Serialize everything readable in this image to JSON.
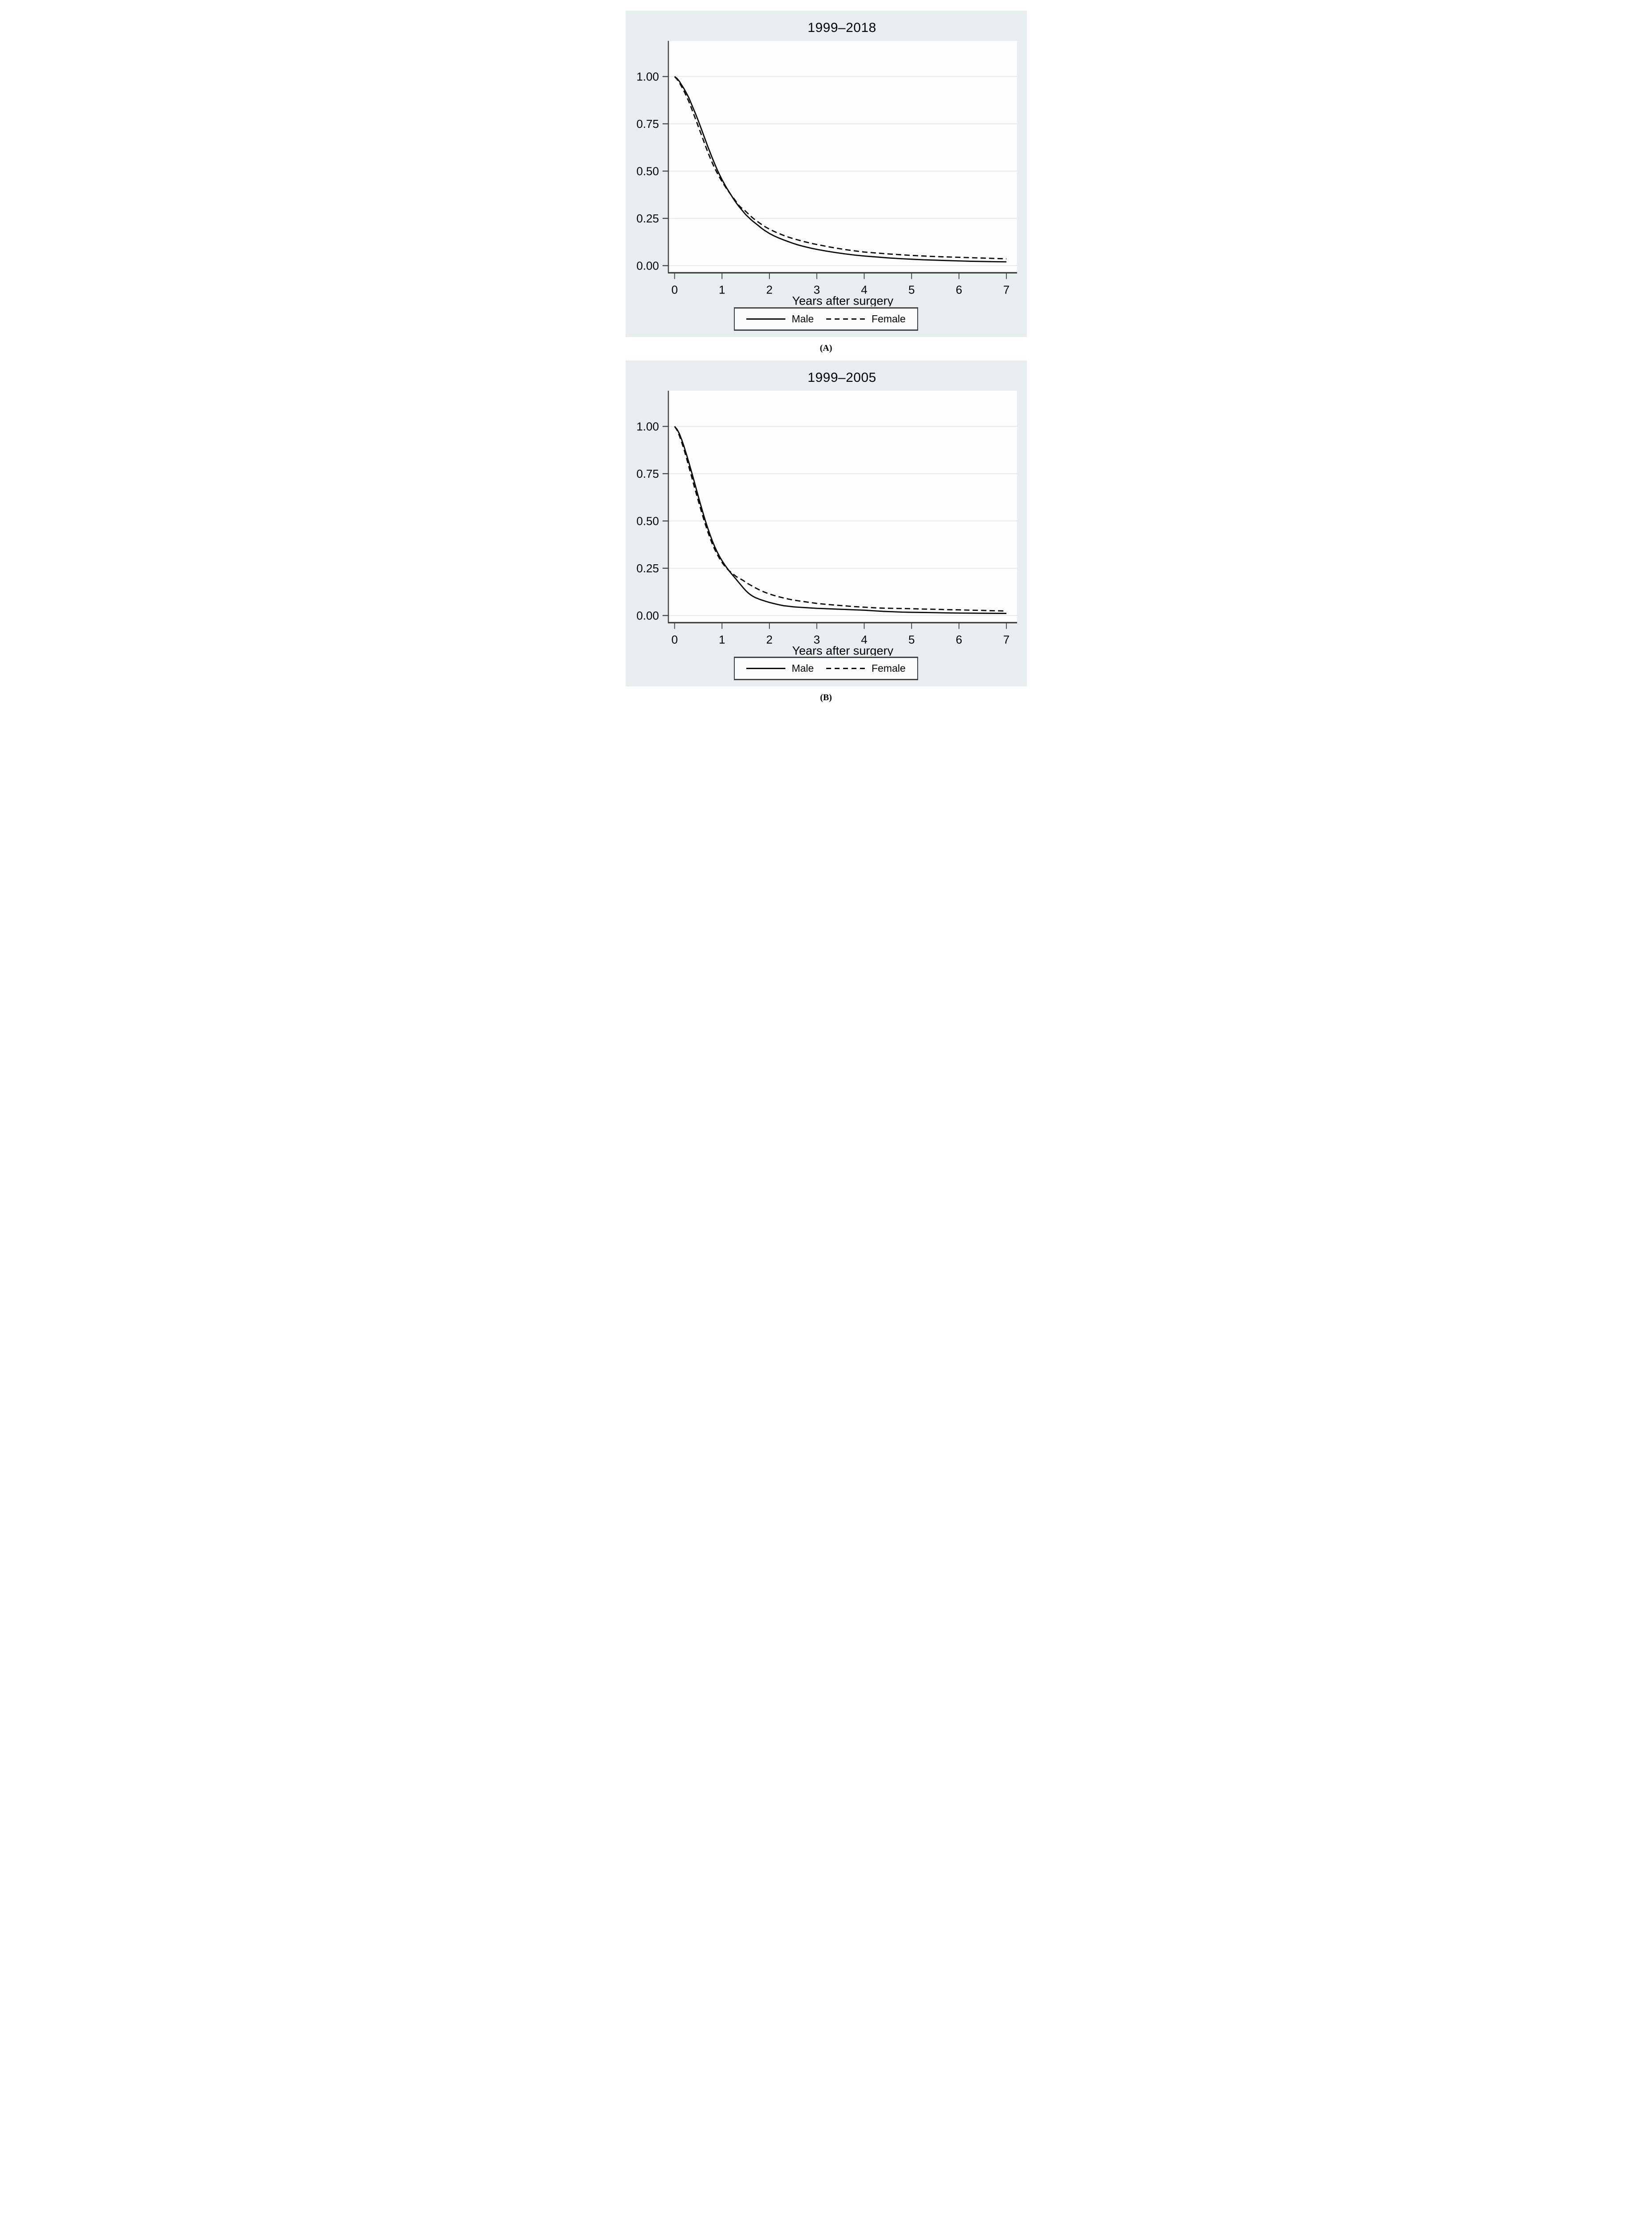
{
  "page": {
    "caption_a": "(A)",
    "caption_b": "(B)"
  },
  "colors": {
    "page_bg": "#ffffff",
    "region_bg": "#e8eef0",
    "plot_bg": "#fdfdfe",
    "gridline": "#dde8ec",
    "axis": "#3f3f3f",
    "curve": "#0a0a0a",
    "legend_bg": "#fbfcfd",
    "legend_border": "#434343",
    "text": "#000000"
  },
  "chart_data": [
    {
      "type": "line",
      "panel": "A",
      "title": "1999–2018",
      "xlabel": "Years after surgery",
      "ylabel": "",
      "xlim": [
        0,
        7
      ],
      "ylim": [
        0,
        1
      ],
      "x_ticks": [
        "0",
        "1",
        "2",
        "3",
        "4",
        "5",
        "6",
        "7"
      ],
      "y_ticks": [
        "1.00",
        "0.75",
        "0.50",
        "0.25",
        "0.00"
      ],
      "grid": true,
      "legend_position": "bottom-box",
      "series": [
        {
          "name": "Male",
          "style": "solid",
          "color": "#0a0a0a",
          "points": [
            [
              0,
              1.0
            ],
            [
              0.05,
              0.99
            ],
            [
              0.1,
              0.975
            ],
            [
              0.15,
              0.955
            ],
            [
              0.2,
              0.935
            ],
            [
              0.25,
              0.912
            ],
            [
              0.3,
              0.888
            ],
            [
              0.35,
              0.858
            ],
            [
              0.4,
              0.828
            ],
            [
              0.45,
              0.798
            ],
            [
              0.5,
              0.766
            ],
            [
              0.55,
              0.732
            ],
            [
              0.6,
              0.698
            ],
            [
              0.65,
              0.664
            ],
            [
              0.7,
              0.63
            ],
            [
              0.75,
              0.598
            ],
            [
              0.8,
              0.566
            ],
            [
              0.85,
              0.536
            ],
            [
              0.9,
              0.506
            ],
            [
              0.95,
              0.48
            ],
            [
              1.0,
              0.455
            ],
            [
              1.05,
              0.432
            ],
            [
              1.1,
              0.41
            ],
            [
              1.15,
              0.39
            ],
            [
              1.2,
              0.37
            ],
            [
              1.25,
              0.35
            ],
            [
              1.3,
              0.332
            ],
            [
              1.35,
              0.315
            ],
            [
              1.4,
              0.3
            ],
            [
              1.45,
              0.285
            ],
            [
              1.5,
              0.27
            ],
            [
              1.55,
              0.258
            ],
            [
              1.6,
              0.246
            ],
            [
              1.65,
              0.235
            ],
            [
              1.7,
              0.225
            ],
            [
              1.75,
              0.215
            ],
            [
              1.8,
              0.205
            ],
            [
              1.85,
              0.195
            ],
            [
              1.9,
              0.186
            ],
            [
              1.95,
              0.178
            ],
            [
              2.0,
              0.17
            ],
            [
              2.1,
              0.157
            ],
            [
              2.2,
              0.146
            ],
            [
              2.3,
              0.136
            ],
            [
              2.4,
              0.127
            ],
            [
              2.5,
              0.118
            ],
            [
              2.6,
              0.11
            ],
            [
              2.7,
              0.103
            ],
            [
              2.8,
              0.097
            ],
            [
              2.9,
              0.091
            ],
            [
              3.0,
              0.086
            ],
            [
              3.2,
              0.077
            ],
            [
              3.4,
              0.069
            ],
            [
              3.6,
              0.062
            ],
            [
              3.8,
              0.056
            ],
            [
              4.0,
              0.051
            ],
            [
              4.25,
              0.046
            ],
            [
              4.5,
              0.041
            ],
            [
              4.75,
              0.037
            ],
            [
              5.0,
              0.034
            ],
            [
              5.25,
              0.031
            ],
            [
              5.5,
              0.029
            ],
            [
              5.75,
              0.027
            ],
            [
              6.0,
              0.025
            ],
            [
              6.25,
              0.023
            ],
            [
              6.5,
              0.022
            ],
            [
              6.75,
              0.021
            ],
            [
              7.0,
              0.02
            ]
          ]
        },
        {
          "name": "Female",
          "style": "dashed",
          "color": "#0a0a0a",
          "points": [
            [
              0,
              1.0
            ],
            [
              0.05,
              0.986
            ],
            [
              0.1,
              0.968
            ],
            [
              0.15,
              0.946
            ],
            [
              0.2,
              0.922
            ],
            [
              0.25,
              0.896
            ],
            [
              0.3,
              0.868
            ],
            [
              0.35,
              0.836
            ],
            [
              0.4,
              0.803
            ],
            [
              0.45,
              0.77
            ],
            [
              0.5,
              0.736
            ],
            [
              0.55,
              0.702
            ],
            [
              0.6,
              0.668
            ],
            [
              0.65,
              0.634
            ],
            [
              0.7,
              0.601
            ],
            [
              0.75,
              0.57
            ],
            [
              0.8,
              0.541
            ],
            [
              0.85,
              0.514
            ],
            [
              0.9,
              0.489
            ],
            [
              0.95,
              0.466
            ],
            [
              1.0,
              0.445
            ],
            [
              1.05,
              0.425
            ],
            [
              1.1,
              0.406
            ],
            [
              1.15,
              0.388
            ],
            [
              1.2,
              0.371
            ],
            [
              1.25,
              0.355
            ],
            [
              1.3,
              0.338
            ],
            [
              1.35,
              0.32
            ],
            [
              1.4,
              0.307
            ],
            [
              1.45,
              0.299
            ],
            [
              1.5,
              0.287
            ],
            [
              1.55,
              0.275
            ],
            [
              1.6,
              0.263
            ],
            [
              1.65,
              0.252
            ],
            [
              1.7,
              0.242
            ],
            [
              1.75,
              0.233
            ],
            [
              1.8,
              0.224
            ],
            [
              1.85,
              0.215
            ],
            [
              1.9,
              0.207
            ],
            [
              1.95,
              0.2
            ],
            [
              2.0,
              0.193
            ],
            [
              2.1,
              0.181
            ],
            [
              2.2,
              0.17
            ],
            [
              2.3,
              0.16
            ],
            [
              2.4,
              0.151
            ],
            [
              2.5,
              0.143
            ],
            [
              2.6,
              0.136
            ],
            [
              2.7,
              0.129
            ],
            [
              2.8,
              0.123
            ],
            [
              2.9,
              0.117
            ],
            [
              3.0,
              0.112
            ],
            [
              3.2,
              0.102
            ],
            [
              3.4,
              0.093
            ],
            [
              3.6,
              0.085
            ],
            [
              3.8,
              0.078
            ],
            [
              4.0,
              0.072
            ],
            [
              4.25,
              0.067
            ],
            [
              4.5,
              0.062
            ],
            [
              4.75,
              0.058
            ],
            [
              5.0,
              0.054
            ],
            [
              5.25,
              0.051
            ],
            [
              5.5,
              0.048
            ],
            [
              5.75,
              0.046
            ],
            [
              6.0,
              0.044
            ],
            [
              6.25,
              0.042
            ],
            [
              6.5,
              0.04
            ],
            [
              6.75,
              0.038
            ],
            [
              7.0,
              0.036
            ]
          ]
        }
      ]
    },
    {
      "type": "line",
      "panel": "B",
      "title": "1999–2005",
      "xlabel": "Years after surgery",
      "ylabel": "",
      "xlim": [
        0,
        7
      ],
      "ylim": [
        0,
        1
      ],
      "x_ticks": [
        "0",
        "1",
        "2",
        "3",
        "4",
        "5",
        "6",
        "7"
      ],
      "y_ticks": [
        "1.00",
        "0.75",
        "0.50",
        "0.25",
        "0.00"
      ],
      "grid": true,
      "legend_position": "bottom-box",
      "series": [
        {
          "name": "Male",
          "style": "solid",
          "color": "#0a0a0a",
          "points": [
            [
              0,
              1.0
            ],
            [
              0.05,
              0.985
            ],
            [
              0.1,
              0.962
            ],
            [
              0.15,
              0.93
            ],
            [
              0.2,
              0.893
            ],
            [
              0.25,
              0.852
            ],
            [
              0.3,
              0.81
            ],
            [
              0.35,
              0.766
            ],
            [
              0.4,
              0.722
            ],
            [
              0.45,
              0.676
            ],
            [
              0.5,
              0.63
            ],
            [
              0.55,
              0.585
            ],
            [
              0.6,
              0.542
            ],
            [
              0.65,
              0.5
            ],
            [
              0.7,
              0.462
            ],
            [
              0.75,
              0.426
            ],
            [
              0.8,
              0.392
            ],
            [
              0.85,
              0.362
            ],
            [
              0.9,
              0.335
            ],
            [
              0.95,
              0.311
            ],
            [
              1.0,
              0.29
            ],
            [
              1.05,
              0.271
            ],
            [
              1.1,
              0.253
            ],
            [
              1.15,
              0.236
            ],
            [
              1.2,
              0.221
            ],
            [
              1.25,
              0.206
            ],
            [
              1.3,
              0.191
            ],
            [
              1.35,
              0.176
            ],
            [
              1.4,
              0.161
            ],
            [
              1.45,
              0.146
            ],
            [
              1.5,
              0.132
            ],
            [
              1.55,
              0.12
            ],
            [
              1.6,
              0.11
            ],
            [
              1.65,
              0.102
            ],
            [
              1.7,
              0.095
            ],
            [
              1.75,
              0.09
            ],
            [
              1.8,
              0.085
            ],
            [
              1.9,
              0.077
            ],
            [
              2.0,
              0.069
            ],
            [
              2.1,
              0.063
            ],
            [
              2.2,
              0.057
            ],
            [
              2.3,
              0.052
            ],
            [
              2.4,
              0.049
            ],
            [
              2.5,
              0.046
            ],
            [
              2.6,
              0.044
            ],
            [
              2.8,
              0.041
            ],
            [
              3.0,
              0.038
            ],
            [
              3.2,
              0.036
            ],
            [
              3.4,
              0.034
            ],
            [
              3.6,
              0.032
            ],
            [
              3.8,
              0.03
            ],
            [
              4.0,
              0.028
            ],
            [
              4.2,
              0.025
            ],
            [
              4.4,
              0.022
            ],
            [
              4.6,
              0.02
            ],
            [
              4.8,
              0.018
            ],
            [
              5.0,
              0.017
            ],
            [
              5.25,
              0.016
            ],
            [
              5.5,
              0.015
            ],
            [
              5.75,
              0.014
            ],
            [
              6.0,
              0.013
            ],
            [
              6.5,
              0.012
            ],
            [
              7.0,
              0.011
            ]
          ]
        },
        {
          "name": "Female",
          "style": "dashed",
          "color": "#0a0a0a",
          "points": [
            [
              0,
              1.0
            ],
            [
              0.05,
              0.981
            ],
            [
              0.1,
              0.952
            ],
            [
              0.15,
              0.916
            ],
            [
              0.2,
              0.877
            ],
            [
              0.25,
              0.833
            ],
            [
              0.3,
              0.788
            ],
            [
              0.35,
              0.742
            ],
            [
              0.4,
              0.696
            ],
            [
              0.45,
              0.651
            ],
            [
              0.5,
              0.607
            ],
            [
              0.55,
              0.563
            ],
            [
              0.6,
              0.521
            ],
            [
              0.65,
              0.481
            ],
            [
              0.7,
              0.443
            ],
            [
              0.75,
              0.408
            ],
            [
              0.8,
              0.376
            ],
            [
              0.85,
              0.348
            ],
            [
              0.9,
              0.323
            ],
            [
              0.95,
              0.3
            ],
            [
              1.0,
              0.281
            ],
            [
              1.05,
              0.264
            ],
            [
              1.1,
              0.249
            ],
            [
              1.15,
              0.237
            ],
            [
              1.2,
              0.227
            ],
            [
              1.25,
              0.216
            ],
            [
              1.3,
              0.206
            ],
            [
              1.35,
              0.198
            ],
            [
              1.4,
              0.192
            ],
            [
              1.45,
              0.185
            ],
            [
              1.5,
              0.176
            ],
            [
              1.55,
              0.168
            ],
            [
              1.6,
              0.161
            ],
            [
              1.65,
              0.154
            ],
            [
              1.7,
              0.147
            ],
            [
              1.8,
              0.134
            ],
            [
              1.9,
              0.123
            ],
            [
              2.0,
              0.114
            ],
            [
              2.1,
              0.106
            ],
            [
              2.2,
              0.099
            ],
            [
              2.3,
              0.093
            ],
            [
              2.4,
              0.087
            ],
            [
              2.5,
              0.082
            ],
            [
              2.6,
              0.078
            ],
            [
              2.8,
              0.071
            ],
            [
              3.0,
              0.064
            ],
            [
              3.2,
              0.059
            ],
            [
              3.4,
              0.055
            ],
            [
              3.6,
              0.051
            ],
            [
              3.8,
              0.047
            ],
            [
              4.0,
              0.044
            ],
            [
              4.2,
              0.041
            ],
            [
              4.4,
              0.039
            ],
            [
              4.6,
              0.038
            ],
            [
              4.8,
              0.037
            ],
            [
              5.0,
              0.036
            ],
            [
              5.25,
              0.034
            ],
            [
              5.5,
              0.033
            ],
            [
              5.75,
              0.031
            ],
            [
              6.0,
              0.03
            ],
            [
              6.25,
              0.028
            ],
            [
              6.5,
              0.027
            ],
            [
              6.75,
              0.025
            ],
            [
              7.0,
              0.024
            ]
          ]
        }
      ]
    }
  ]
}
